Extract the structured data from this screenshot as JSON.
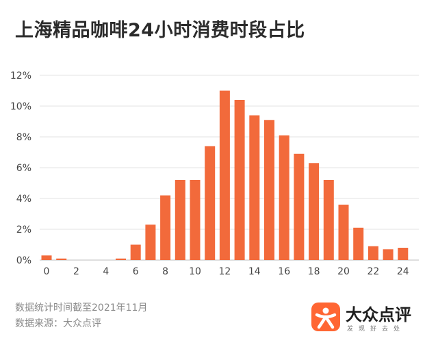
{
  "chart_data": {
    "type": "bar",
    "title": "上海精品咖啡24小时消费时段占比",
    "xlabel": "",
    "ylabel": "",
    "x": [
      0,
      1,
      2,
      3,
      4,
      5,
      6,
      7,
      8,
      9,
      10,
      11,
      12,
      13,
      14,
      15,
      16,
      17,
      18,
      19,
      20,
      21,
      22,
      23,
      24
    ],
    "values": [
      0.3,
      0.1,
      0,
      0,
      0,
      0.1,
      1.0,
      2.3,
      4.2,
      5.2,
      5.2,
      7.4,
      11.0,
      10.4,
      9.4,
      9.1,
      8.1,
      6.9,
      6.3,
      5.2,
      3.6,
      2.1,
      0.9,
      0.7,
      0.8
    ],
    "xticks": [
      "0",
      "2",
      "4",
      "6",
      "8",
      "10",
      "12",
      "14",
      "16",
      "18",
      "20",
      "22",
      "24"
    ],
    "yticks": [
      "0%",
      "2%",
      "4%",
      "6%",
      "8%",
      "10%",
      "12%"
    ],
    "ylim": [
      0,
      12
    ],
    "grid": true,
    "bar_color": "#f26a3b"
  },
  "footer": {
    "line1": "数据统计时间截至2021年11月",
    "line2": "数据来源：大众点评"
  },
  "brand": {
    "name": "大众点评",
    "slogan": "发现好去处",
    "icon": "dianping-logo-icon",
    "color": "#ff6633"
  }
}
